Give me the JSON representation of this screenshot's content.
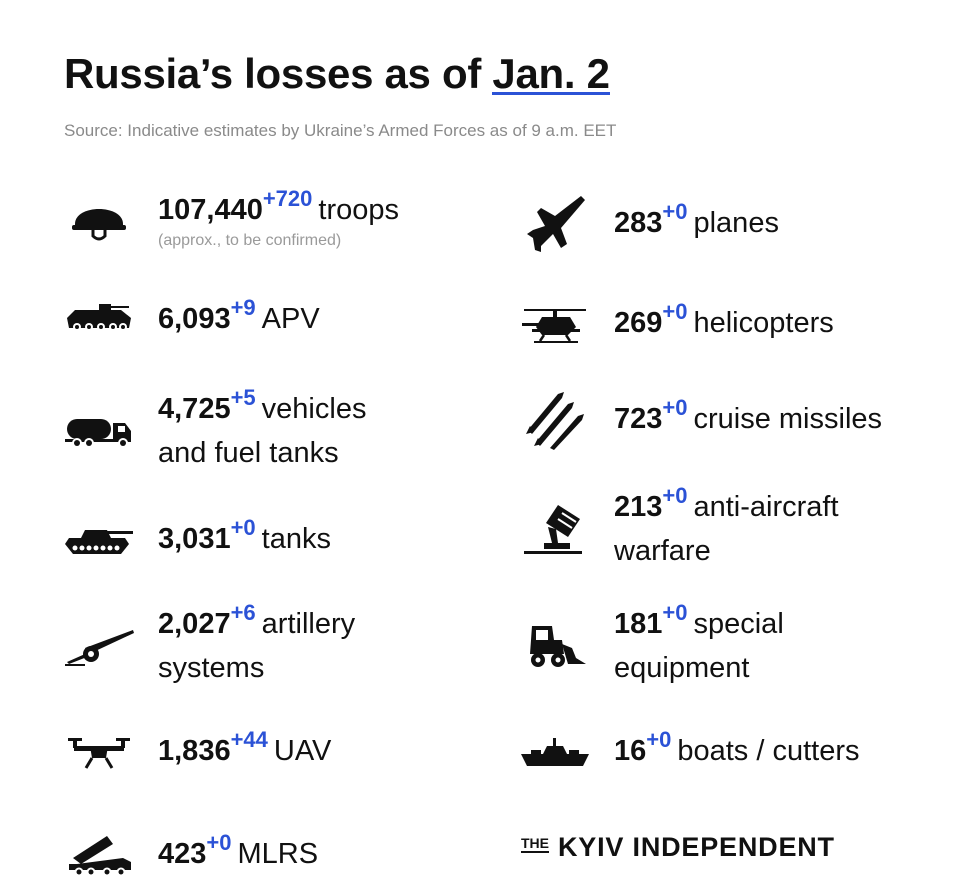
{
  "header": {
    "title_prefix": "Russia’s losses as of ",
    "title_date": "Jan. 2",
    "source": "Source: Indicative estimates by Ukraine’s Armed Forces as of 9 a.m. EET"
  },
  "left": [
    {
      "icon": "helmet-icon",
      "value": "107,440",
      "delta": "+720",
      "label": "troops",
      "note": "(approx., to be confirmed)"
    },
    {
      "icon": "apv-icon",
      "value": "6,093",
      "delta": "+9",
      "label": "APV"
    },
    {
      "icon": "fuel-truck-icon",
      "value": "4,725",
      "delta": "+5",
      "label": "vehicles",
      "label2": "and fuel tanks"
    },
    {
      "icon": "tank-icon",
      "value": "3,031",
      "delta": "+0",
      "label": "tanks"
    },
    {
      "icon": "artillery-icon",
      "value": "2,027",
      "delta": "+6",
      "label": "artillery",
      "label2": "systems"
    },
    {
      "icon": "drone-icon",
      "value": "1,836",
      "delta": "+44",
      "label": "UAV"
    },
    {
      "icon": "mlrs-icon",
      "value": "423",
      "delta": "+0",
      "label": "MLRS"
    }
  ],
  "right": [
    {
      "icon": "plane-icon",
      "value": "283",
      "delta": "+0",
      "label": "planes"
    },
    {
      "icon": "helicopter-icon",
      "value": "269",
      "delta": "+0",
      "label": "helicopters"
    },
    {
      "icon": "missiles-icon",
      "value": "723",
      "delta": "+0",
      "label": "cruise missiles"
    },
    {
      "icon": "anti-aircraft-icon",
      "value": "213",
      "delta": "+0",
      "label": "anti-aircraft",
      "label2": "warfare"
    },
    {
      "icon": "loader-icon",
      "value": "181",
      "delta": "+0",
      "label": "special",
      "label2": "equipment"
    },
    {
      "icon": "ship-icon",
      "value": "16",
      "delta": "+0",
      "label": "boats / cutters"
    }
  ],
  "brand": {
    "the": "THE",
    "name": "KYIV INDEPENDENT"
  },
  "colors": {
    "accent": "#2b52d6",
    "text": "#111111",
    "muted": "#8a8a8a"
  }
}
